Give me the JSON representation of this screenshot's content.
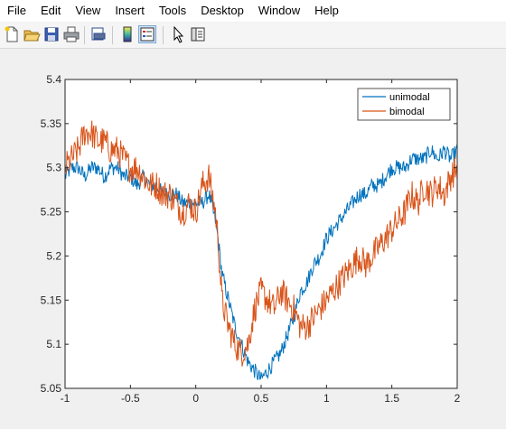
{
  "menu": {
    "items": [
      "File",
      "Edit",
      "View",
      "Insert",
      "Tools",
      "Desktop",
      "Window",
      "Help"
    ]
  },
  "toolbar": {
    "icons": [
      "new-figure-icon",
      "open-file-icon",
      "save-icon",
      "print-icon",
      "print-preview-icon",
      "insert-colorbar-icon",
      "insert-legend-icon",
      "edit-plot-cursor-icon",
      "property-inspector-icon"
    ]
  },
  "chart_data": {
    "type": "line",
    "title": "",
    "xlabel": "",
    "ylabel": "",
    "xlim": [
      -1,
      2
    ],
    "ylim": [
      5.05,
      5.4
    ],
    "xticks": [
      "-1",
      "-0.5",
      "0",
      "0.5",
      "1",
      "1.5",
      "2"
    ],
    "yticks": [
      "5.05",
      "5.1",
      "5.15",
      "5.2",
      "5.25",
      "5.3",
      "5.35",
      "5.4"
    ],
    "grid": false,
    "legend": "top-right",
    "series": [
      {
        "name": "unimodal",
        "color": "#0072bd",
        "x": [
          -1,
          -0.95,
          -0.9,
          -0.85,
          -0.8,
          -0.75,
          -0.7,
          -0.65,
          -0.6,
          -0.55,
          -0.5,
          -0.45,
          -0.4,
          -0.35,
          -0.3,
          -0.25,
          -0.2,
          -0.15,
          -0.1,
          -0.05,
          0,
          0.05,
          0.1,
          0.15,
          0.17,
          0.2,
          0.25,
          0.3,
          0.35,
          0.4,
          0.45,
          0.5,
          0.55,
          0.6,
          0.65,
          0.7,
          0.75,
          0.8,
          0.85,
          0.9,
          0.95,
          1,
          1.05,
          1.1,
          1.15,
          1.2,
          1.25,
          1.3,
          1.35,
          1.4,
          1.45,
          1.5,
          1.55,
          1.6,
          1.65,
          1.7,
          1.75,
          1.8,
          1.85,
          1.9,
          1.95,
          2
        ],
        "y": [
          5.29,
          5.3,
          5.3,
          5.29,
          5.3,
          5.3,
          5.29,
          5.3,
          5.3,
          5.29,
          5.29,
          5.28,
          5.29,
          5.28,
          5.28,
          5.27,
          5.27,
          5.27,
          5.26,
          5.26,
          5.26,
          5.26,
          5.27,
          5.24,
          5.22,
          5.18,
          5.15,
          5.12,
          5.1,
          5.08,
          5.07,
          5.06,
          5.07,
          5.08,
          5.09,
          5.11,
          5.13,
          5.16,
          5.17,
          5.19,
          5.2,
          5.22,
          5.23,
          5.24,
          5.25,
          5.26,
          5.27,
          5.27,
          5.28,
          5.28,
          5.29,
          5.3,
          5.3,
          5.3,
          5.31,
          5.31,
          5.31,
          5.32,
          5.31,
          5.32,
          5.31,
          5.32
        ]
      },
      {
        "name": "bimodal",
        "color": "#d95319",
        "x": [
          -1,
          -0.95,
          -0.9,
          -0.85,
          -0.8,
          -0.75,
          -0.7,
          -0.65,
          -0.6,
          -0.55,
          -0.5,
          -0.45,
          -0.4,
          -0.35,
          -0.3,
          -0.25,
          -0.2,
          -0.15,
          -0.1,
          -0.05,
          0,
          0.05,
          0.1,
          0.15,
          0.17,
          0.2,
          0.25,
          0.3,
          0.35,
          0.4,
          0.45,
          0.5,
          0.55,
          0.6,
          0.65,
          0.7,
          0.75,
          0.8,
          0.85,
          0.9,
          0.95,
          1,
          1.05,
          1.1,
          1.15,
          1.2,
          1.25,
          1.3,
          1.35,
          1.4,
          1.45,
          1.5,
          1.55,
          1.6,
          1.65,
          1.7,
          1.75,
          1.8,
          1.85,
          1.9,
          1.95,
          2
        ],
        "y": [
          5.3,
          5.31,
          5.32,
          5.34,
          5.34,
          5.33,
          5.33,
          5.32,
          5.32,
          5.31,
          5.3,
          5.3,
          5.29,
          5.28,
          5.28,
          5.27,
          5.27,
          5.26,
          5.25,
          5.26,
          5.25,
          5.28,
          5.29,
          5.25,
          5.22,
          5.15,
          5.12,
          5.1,
          5.09,
          5.1,
          5.14,
          5.16,
          5.15,
          5.14,
          5.16,
          5.15,
          5.14,
          5.12,
          5.12,
          5.13,
          5.14,
          5.15,
          5.16,
          5.17,
          5.18,
          5.19,
          5.2,
          5.19,
          5.2,
          5.21,
          5.22,
          5.23,
          5.24,
          5.25,
          5.27,
          5.26,
          5.28,
          5.27,
          5.28,
          5.27,
          5.29,
          5.3
        ]
      }
    ]
  }
}
